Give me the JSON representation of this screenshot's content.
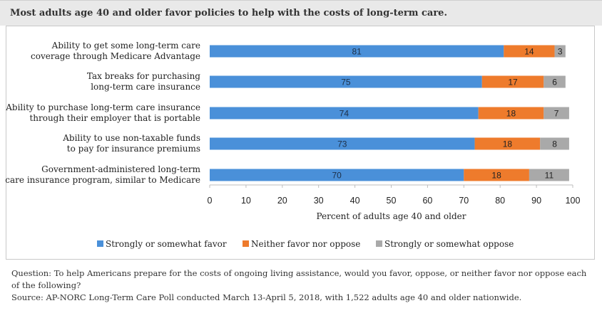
{
  "title": "Most adults age 40 and older favor policies to help with the costs of long-term care.",
  "footer": {
    "question": "Question: To help Americans prepare for the costs of ongoing living assistance, would you favor, oppose, or neither favor nor oppose each of the following?",
    "source": "Source: AP-NORC Long-Term Care Poll conducted March 13-April 5, 2018, with 1,522 adults age 40 and older nationwide."
  },
  "colors": {
    "favor": "#4a90d9",
    "neither": "#ee7b2c",
    "oppose": "#a9a9a9"
  },
  "chart_data": {
    "type": "bar",
    "orientation": "horizontal",
    "stacked": true,
    "categories": [
      [
        "Ability to get some long-term care",
        "coverage through Medicare Advantage"
      ],
      [
        "Tax breaks for purchasing",
        "long-term care insurance"
      ],
      [
        "Ability to purchase long-term care insurance",
        "through their employer that is portable"
      ],
      [
        "Ability to use non-taxable funds",
        "to pay for insurance premiums"
      ],
      [
        "Government-administered long-term",
        "care insurance program, similar to Medicare"
      ]
    ],
    "series": [
      {
        "name": "Strongly or somewhat favor",
        "values": [
          81,
          75,
          74,
          73,
          70
        ]
      },
      {
        "name": "Neither favor nor oppose",
        "values": [
          14,
          17,
          18,
          18,
          18
        ]
      },
      {
        "name": "Strongly or somewhat oppose",
        "values": [
          3,
          6,
          7,
          8,
          11
        ]
      }
    ],
    "xlabel": "Percent of adults age 40 and older",
    "xlim": [
      0,
      100
    ],
    "xticks": [
      0,
      10,
      20,
      30,
      40,
      50,
      60,
      70,
      80,
      90,
      100
    ],
    "grid": false,
    "legend": "bottom"
  }
}
